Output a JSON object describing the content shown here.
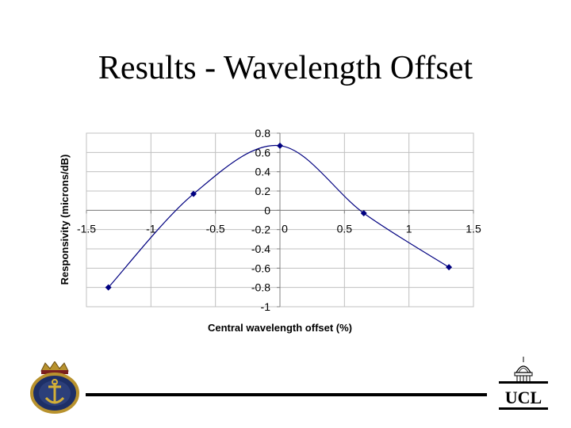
{
  "slide": {
    "title": "Results - Wavelength Offset",
    "ucl_logo_text": "UCL"
  },
  "chart_data": {
    "type": "scatter",
    "title": "",
    "xlabel": "Central wavelength offset (%)",
    "ylabel": "Responsivity (microns/dB)",
    "xlim": [
      -1.5,
      1.5
    ],
    "ylim": [
      -1,
      0.8
    ],
    "xticks": [
      -1.5,
      -1,
      -0.5,
      0,
      0.5,
      1,
      1.5
    ],
    "yticks": [
      0.8,
      0.6,
      0.4,
      0.2,
      0,
      -0.2,
      -0.4,
      -0.6,
      -0.8,
      -1
    ],
    "xtick_labels": [
      "-1.5",
      "-1",
      "-0.5",
      "0",
      "0.5",
      "1",
      "1.5"
    ],
    "ytick_labels": [
      "0.8",
      "0.6",
      "0.4",
      "0.2",
      "0",
      "-0.2",
      "-0.4",
      "-0.6",
      "-0.8",
      "-1"
    ],
    "grid": true,
    "legend": false,
    "series": [
      {
        "x": [
          -1.33,
          -0.67,
          0,
          0.65,
          1.31
        ],
        "y": [
          -0.8,
          0.17,
          0.67,
          -0.03,
          -0.59
        ],
        "marker": "diamond",
        "smoothed_line": true,
        "color": "#000080"
      }
    ]
  }
}
